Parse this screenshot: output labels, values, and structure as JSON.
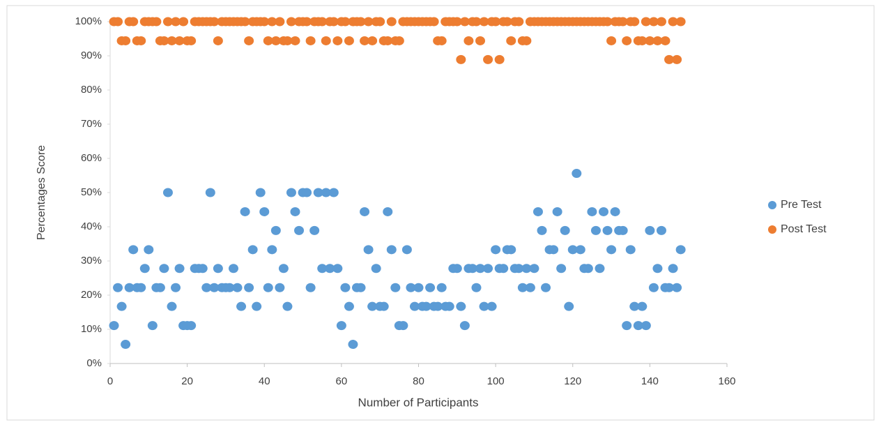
{
  "chart_data": {
    "type": "scatter",
    "xlabel": "Number of Participants",
    "ylabel": "Percentages Score",
    "x": [
      1,
      2,
      3,
      4,
      5,
      6,
      7,
      8,
      9,
      10,
      11,
      12,
      13,
      14,
      15,
      16,
      17,
      18,
      19,
      20,
      21,
      22,
      23,
      24,
      25,
      26,
      27,
      28,
      29,
      30,
      31,
      32,
      33,
      34,
      35,
      36,
      37,
      38,
      39,
      40,
      41,
      42,
      43,
      44,
      45,
      46,
      47,
      48,
      49,
      50,
      51,
      52,
      53,
      54,
      55,
      56,
      57,
      58,
      59,
      60,
      61,
      62,
      63,
      64,
      65,
      66,
      67,
      68,
      69,
      70,
      71,
      72,
      73,
      74,
      75,
      76,
      77,
      78,
      79,
      80,
      81,
      82,
      83,
      84,
      85,
      86,
      87,
      88,
      89,
      90,
      91,
      92,
      93,
      94,
      95,
      96,
      97,
      98,
      99,
      100,
      101,
      102,
      103,
      104,
      105,
      106,
      107,
      108,
      109,
      110,
      111,
      112,
      113,
      114,
      115,
      116,
      117,
      118,
      119,
      120,
      121,
      122,
      123,
      124,
      125,
      126,
      127,
      128,
      129,
      130,
      131,
      132,
      133,
      134,
      135,
      136,
      137,
      138,
      139,
      140,
      141,
      142,
      143,
      144,
      145,
      146,
      147,
      148
    ],
    "series": [
      {
        "name": "Pre Test",
        "color": "#5b9bd5",
        "values": [
          11.1,
          22.2,
          16.7,
          5.6,
          22.2,
          33.3,
          22.2,
          22.2,
          27.8,
          33.3,
          11.1,
          22.2,
          22.2,
          27.8,
          50,
          16.7,
          22.2,
          27.8,
          11.1,
          11.1,
          11.1,
          27.8,
          27.8,
          27.8,
          22.2,
          50,
          22.2,
          27.8,
          22.2,
          22.2,
          22.2,
          27.8,
          22.2,
          16.7,
          44.4,
          22.2,
          33.3,
          16.7,
          50,
          44.4,
          22.2,
          33.3,
          38.9,
          22.2,
          27.8,
          16.7,
          50,
          44.4,
          38.9,
          50,
          50,
          22.2,
          38.9,
          50,
          27.8,
          50,
          27.8,
          50,
          27.8,
          11.1,
          22.2,
          16.7,
          5.6,
          22.2,
          22.2,
          44.4,
          33.3,
          16.7,
          27.8,
          16.7,
          16.7,
          44.4,
          33.3,
          22.2,
          11.1,
          11.1,
          33.3,
          22.2,
          16.7,
          22.2,
          16.7,
          16.7,
          22.2,
          16.7,
          16.7,
          22.2,
          16.7,
          16.7,
          27.8,
          27.8,
          16.7,
          11.1,
          27.8,
          27.8,
          22.2,
          27.8,
          16.7,
          27.8,
          16.7,
          33.3,
          27.8,
          27.8,
          33.3,
          33.3,
          27.8,
          27.8,
          22.2,
          27.8,
          22.2,
          27.8,
          44.4,
          38.9,
          22.2,
          33.3,
          33.3,
          44.4,
          27.8,
          38.9,
          16.7,
          33.3,
          55.6,
          33.3,
          27.8,
          27.8,
          44.4,
          38.9,
          27.8,
          44.4,
          38.9,
          33.3,
          44.4,
          38.9,
          38.9,
          11.1,
          33.3,
          16.7,
          11.1,
          16.7,
          11.1,
          38.9,
          22.2,
          27.8,
          38.9,
          22.2,
          22.2,
          27.8,
          22.2,
          33.3
        ]
      },
      {
        "name": "Post Test",
        "color": "#ed7d31",
        "values": [
          100,
          100,
          94.4,
          94.4,
          100,
          100,
          94.4,
          94.4,
          100,
          100,
          100,
          100,
          94.4,
          94.4,
          100,
          94.4,
          100,
          94.4,
          100,
          94.4,
          94.4,
          100,
          100,
          100,
          100,
          100,
          100,
          94.4,
          100,
          100,
          100,
          100,
          100,
          100,
          100,
          94.4,
          100,
          100,
          100,
          100,
          94.4,
          100,
          94.4,
          100,
          94.4,
          94.4,
          100,
          94.4,
          100,
          100,
          100,
          94.4,
          100,
          100,
          100,
          94.4,
          100,
          100,
          94.4,
          100,
          100,
          94.4,
          100,
          100,
          100,
          94.4,
          100,
          94.4,
          100,
          100,
          94.4,
          94.4,
          100,
          94.4,
          94.4,
          100,
          100,
          100,
          100,
          100,
          100,
          100,
          100,
          100,
          94.4,
          94.4,
          100,
          100,
          100,
          100,
          88.9,
          100,
          94.4,
          100,
          100,
          94.4,
          100,
          88.9,
          100,
          100,
          88.9,
          100,
          100,
          94.4,
          100,
          100,
          94.4,
          94.4,
          100,
          100,
          100,
          100,
          100,
          100,
          100,
          100,
          100,
          100,
          100,
          100,
          100,
          100,
          100,
          100,
          100,
          100,
          100,
          100,
          100,
          94.4,
          100,
          100,
          100,
          94.4,
          100,
          100,
          94.4,
          94.4,
          100,
          94.4,
          100,
          94.4,
          100,
          94.4,
          88.9,
          100,
          88.9,
          100
        ]
      }
    ],
    "xlim": [
      0,
      160
    ],
    "xticks": [
      0,
      20,
      40,
      60,
      80,
      100,
      120,
      140,
      160
    ],
    "ylim": [
      0,
      100
    ],
    "yticks": [
      {
        "value": 0,
        "label": "0%"
      },
      {
        "value": 10,
        "label": "10%"
      },
      {
        "value": 20,
        "label": "20%"
      },
      {
        "value": 30,
        "label": "30%"
      },
      {
        "value": 40,
        "label": "40%"
      },
      {
        "value": 50,
        "label": "50%"
      },
      {
        "value": 60,
        "label": "60%"
      },
      {
        "value": 70,
        "label": "70%"
      },
      {
        "value": 80,
        "label": "80%"
      },
      {
        "value": 90,
        "label": "90%"
      },
      {
        "value": 100,
        "label": "100%"
      }
    ],
    "grid": false,
    "legend": "right"
  }
}
